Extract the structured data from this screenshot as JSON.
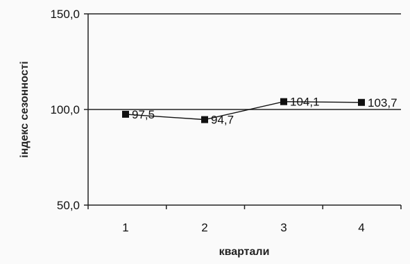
{
  "chart_data": {
    "type": "line",
    "title": "",
    "xlabel": "квартали",
    "ylabel": "індекс сезонності",
    "categories": [
      "1",
      "2",
      "3",
      "4"
    ],
    "series": [
      {
        "values": [
          97.5,
          94.7,
          104.1,
          103.7
        ],
        "labels": [
          "97,5",
          "94,7",
          "104,1",
          "103,7"
        ],
        "color": "#111111",
        "marker": "square"
      }
    ],
    "reference_line": 100.0,
    "ylim": [
      50.0,
      150.0
    ],
    "yticks": [
      50.0,
      100.0,
      150.0
    ],
    "ytick_labels": [
      "50,0",
      "100,0",
      "150,0"
    ],
    "grid": false,
    "legend": "none"
  }
}
